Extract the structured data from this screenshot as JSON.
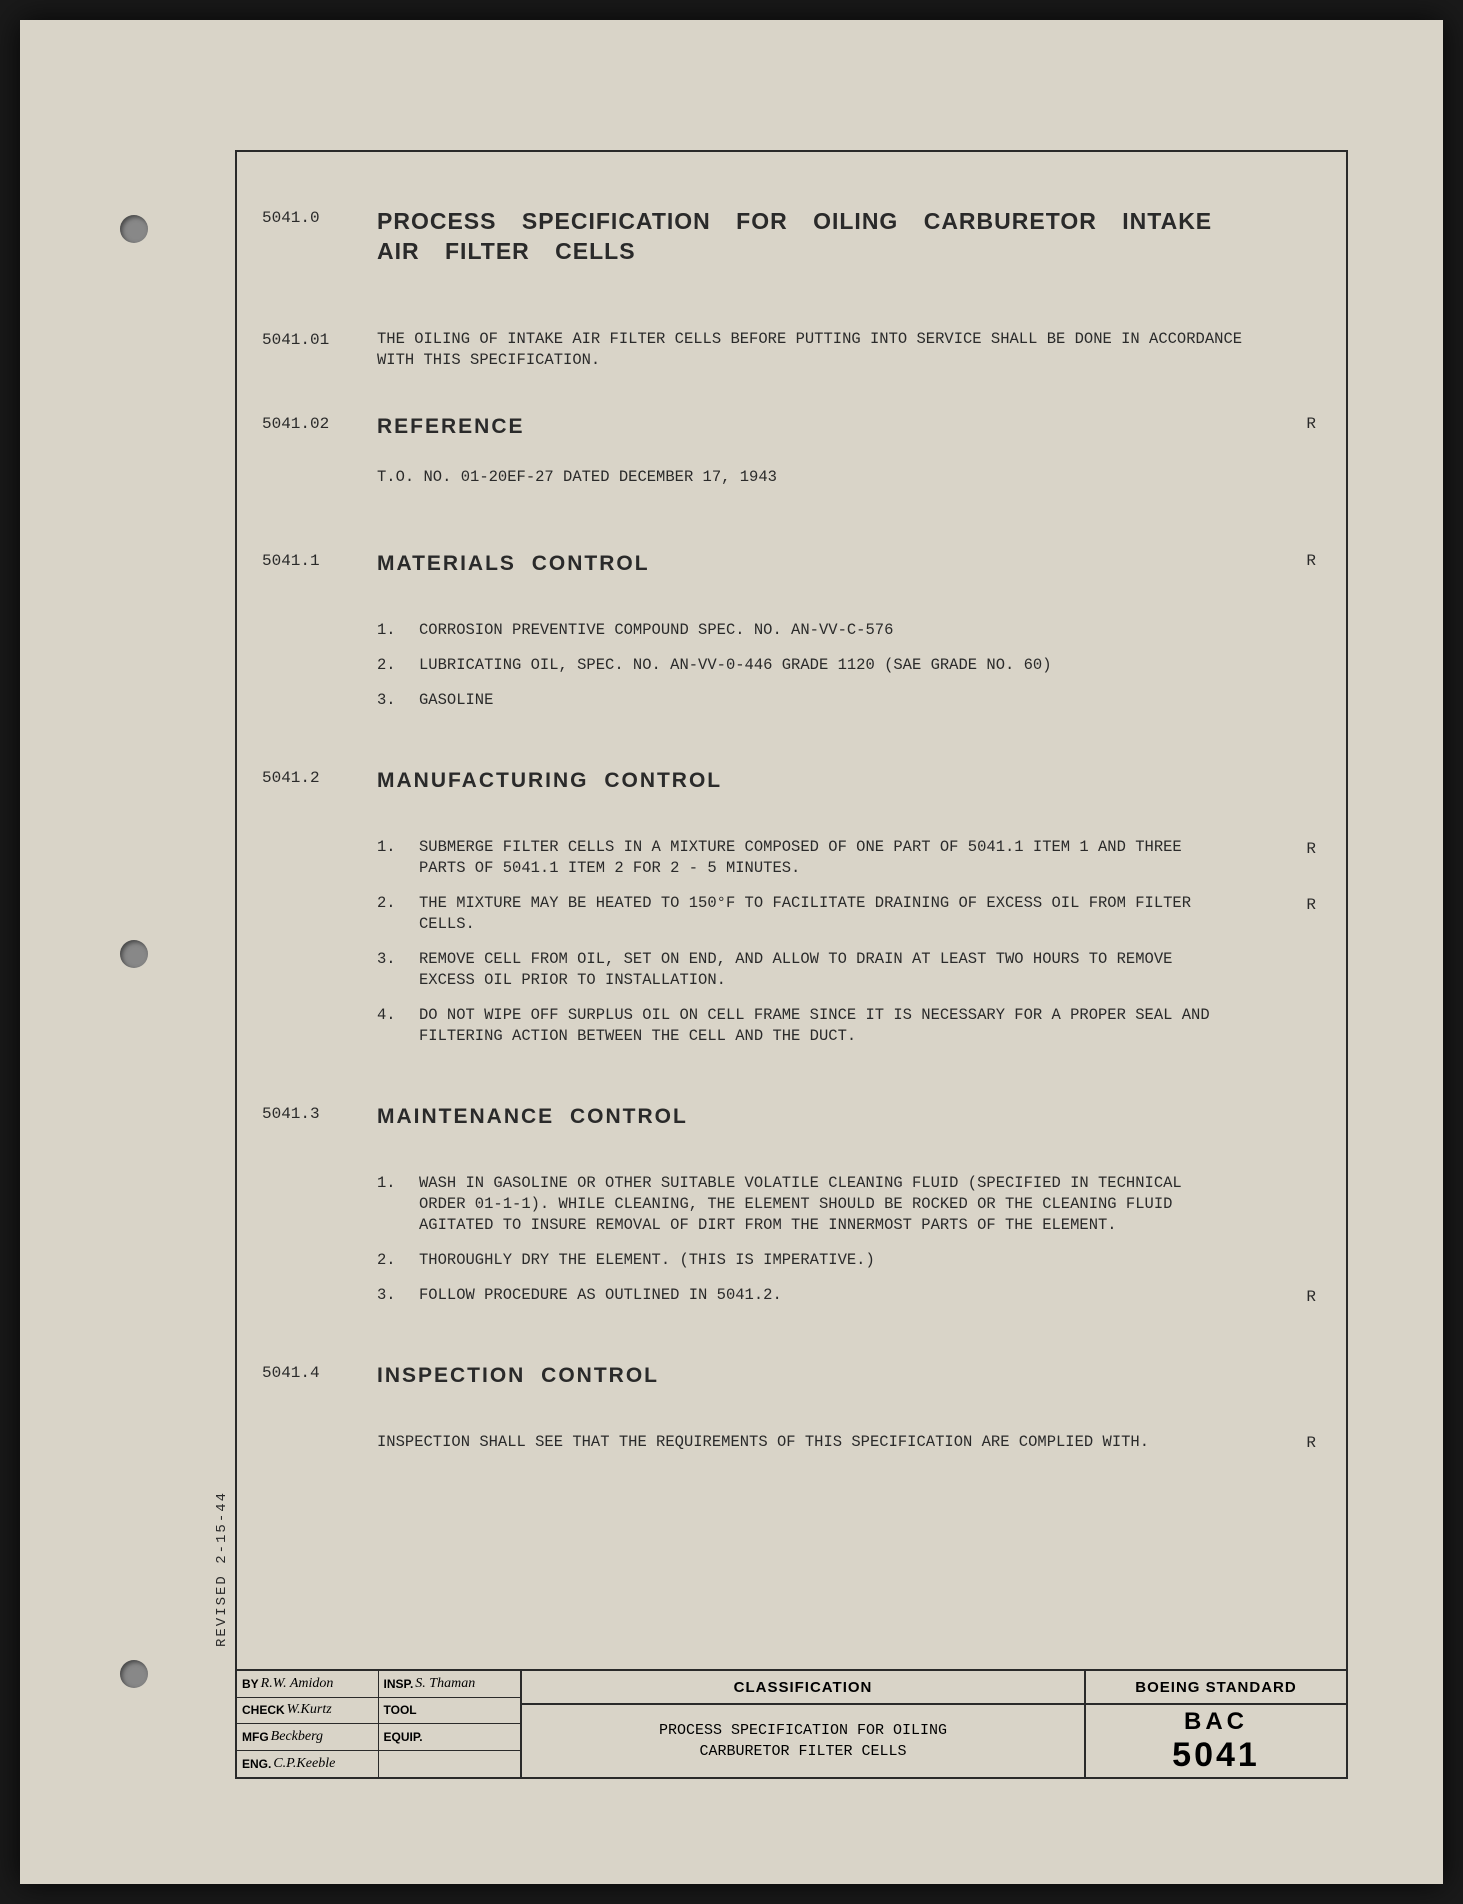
{
  "punch_holes": true,
  "sections": {
    "s0": {
      "num": "5041.0",
      "title": "PROCESS SPECIFICATION FOR OILING CARBURETOR INTAKE AIR FILTER CELLS"
    },
    "s01": {
      "num": "5041.01",
      "text": "THE OILING OF INTAKE AIR FILTER CELLS BEFORE PUTTING INTO SERVICE SHALL BE DONE IN ACCORDANCE WITH THIS SPECIFICATION."
    },
    "s02": {
      "num": "5041.02",
      "title": "REFERENCE",
      "r": "R",
      "text": "T.O. NO. 01-20EF-27 DATED DECEMBER 17, 1943"
    },
    "s1": {
      "num": "5041.1",
      "title": "MATERIALS CONTROL",
      "r": "R",
      "items": [
        {
          "n": "1.",
          "t": "CORROSION PREVENTIVE COMPOUND SPEC. NO. AN-VV-C-576"
        },
        {
          "n": "2.",
          "t": "LUBRICATING OIL, SPEC. NO. AN-VV-0-446 GRADE 1120 (SAE GRADE NO. 60)"
        },
        {
          "n": "3.",
          "t": "GASOLINE"
        }
      ]
    },
    "s2": {
      "num": "5041.2",
      "title": "MANUFACTURING  CONTROL",
      "items": [
        {
          "n": "1.",
          "t": "SUBMERGE FILTER CELLS IN A MIXTURE COMPOSED OF ONE PART OF 5041.1 ITEM 1 AND THREE PARTS OF 5041.1 ITEM 2 FOR 2 - 5 MINUTES.",
          "r": "R"
        },
        {
          "n": "2.",
          "t": "THE MIXTURE MAY BE HEATED TO 150°F TO FACILITATE DRAINING OF EXCESS OIL FROM FILTER CELLS.",
          "r": "R"
        },
        {
          "n": "3.",
          "t": "REMOVE CELL FROM OIL, SET ON END, AND ALLOW TO DRAIN AT LEAST TWO HOURS TO REMOVE EXCESS OIL PRIOR TO INSTALLATION."
        },
        {
          "n": "4.",
          "t": "DO NOT WIPE OFF SURPLUS OIL ON CELL FRAME SINCE IT IS NECESSARY FOR A PROPER SEAL AND FILTERING ACTION BETWEEN THE CELL AND THE DUCT."
        }
      ]
    },
    "s3": {
      "num": "5041.3",
      "title": "MAINTENANCE CONTROL",
      "items": [
        {
          "n": "1.",
          "t": "WASH IN GASOLINE OR OTHER SUITABLE VOLATILE CLEANING FLUID (SPECIFIED IN TECHNICAL ORDER 01-1-1).  WHILE CLEANING, THE ELEMENT SHOULD BE ROCKED OR THE CLEANING FLUID AGITATED TO INSURE REMOVAL OF DIRT FROM THE INNERMOST PARTS OF THE ELEMENT."
        },
        {
          "n": "2.",
          "t": "THOROUGHLY DRY THE ELEMENT.  (THIS IS IMPERATIVE.)"
        },
        {
          "n": "3.",
          "t": "FOLLOW PROCEDURE AS OUTLINED IN 5041.2.",
          "r": "R"
        }
      ]
    },
    "s4": {
      "num": "5041.4",
      "title": "INSPECTION  CONTROL",
      "text": "INSPECTION SHALL SEE THAT THE REQUIREMENTS OF THIS SPECIFICATION ARE COMPLIED WITH.",
      "r": "R"
    }
  },
  "revised": "REVISED 2-15-44",
  "footer": {
    "left": {
      "by": "BY",
      "by_sig": "R.W. Amidon",
      "check": "CHECK",
      "check_sig": "W.Kurtz",
      "mfg": "MFG",
      "mfg_sig": "Beckberg",
      "eng": "ENG.",
      "eng_sig": "C.P.Keeble",
      "insp": "INSP.",
      "insp_sig": "S. Thaman",
      "tool": "TOOL",
      "equip": "EQUIP."
    },
    "classification": "CLASSIFICATION",
    "spec_title": "PROCESS SPECIFICATION FOR OILING CARBURETOR FILTER CELLS",
    "standard": "BOEING STANDARD",
    "bac": "BAC",
    "bac_num": "5041"
  }
}
